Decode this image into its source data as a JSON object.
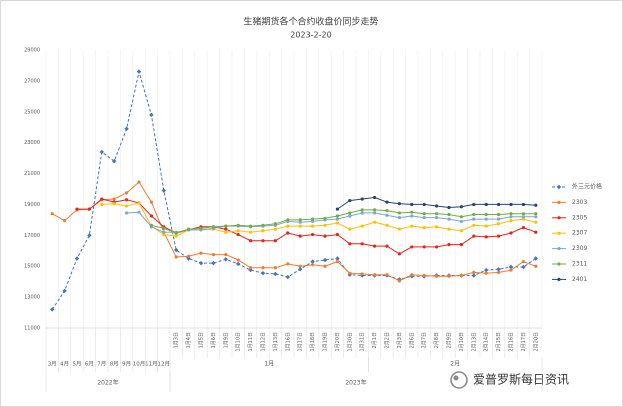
{
  "chart_data": {
    "type": "line",
    "title": "生猪期货各个合约收盘价同步走势",
    "subtitle": "2023-2-20",
    "categories": [
      "3月",
      "4月",
      "5月",
      "6月",
      "7月",
      "8月",
      "9月",
      "10月",
      "11月",
      "12月",
      "1月3日",
      "1月4日",
      "1月5日",
      "1月6日",
      "1月9日",
      "1月10日",
      "1月11日",
      "1月12日",
      "1月13日",
      "1月16日",
      "1月17日",
      "1月18日",
      "1月19日",
      "1月20日",
      "1月30日",
      "1月31日",
      "2月1日",
      "2月2日",
      "2月3日",
      "2月6日",
      "2月7日",
      "2月8日",
      "2月9日",
      "2月10日",
      "2月13日",
      "2月14日",
      "2月15日",
      "2月16日",
      "2月17日",
      "2月20日"
    ],
    "category_months": [
      null,
      null,
      null,
      null,
      null,
      null,
      null,
      null,
      null,
      null,
      "1月",
      "1月",
      "1月",
      "1月",
      "1月",
      "1月",
      "1月",
      "1月",
      "1月",
      "1月",
      "1月",
      "1月",
      "1月",
      "1月",
      "1月",
      "1月",
      "2月",
      "2月",
      "2月",
      "2月",
      "2月",
      "2月",
      "2月",
      "2月",
      "2月",
      "2月",
      "2月",
      "2月",
      "2月",
      "2月"
    ],
    "category_years": [
      "2022年",
      "2022年",
      "2022年",
      "2022年",
      "2022年",
      "2022年",
      "2022年",
      "2022年",
      "2022年",
      "2022年",
      "2023年",
      "2023年",
      "2023年",
      "2023年",
      "2023年",
      "2023年",
      "2023年",
      "2023年",
      "2023年",
      "2023年",
      "2023年",
      "2023年",
      "2023年",
      "2023年",
      "2023年",
      "2023年",
      "2023年",
      "2023年",
      "2023年",
      "2023年",
      "2023年",
      "2023年",
      "2023年",
      "2023年",
      "2023年",
      "2023年",
      "2023年",
      "2023年",
      "2023年",
      "2023年"
    ],
    "series": [
      {
        "name": "外三元价格",
        "color": "#4472c4",
        "dashed": true,
        "marker": "diamond",
        "values": [
          12200,
          13400,
          15500,
          17000,
          22400,
          21800,
          23900,
          27600,
          24800,
          19900,
          16050,
          15500,
          15200,
          15200,
          15450,
          15150,
          14750,
          14550,
          14500,
          14300,
          14800,
          15300,
          15400,
          15500,
          14450,
          14400,
          14400,
          14400,
          14150,
          14350,
          14350,
          14400,
          14400,
          14400,
          14400,
          14750,
          14800,
          14950,
          14950,
          15500
        ]
      },
      {
        "name": "2303",
        "color": "#ed7d31",
        "values": [
          18400,
          17950,
          18650,
          18700,
          19300,
          19350,
          19750,
          20450,
          19150,
          17200,
          15600,
          15650,
          15850,
          15750,
          15750,
          15400,
          14900,
          14900,
          14900,
          15150,
          15000,
          15100,
          15000,
          15300,
          14550,
          14500,
          14450,
          14450,
          14050,
          14450,
          14400,
          14350,
          14350,
          14400,
          14600,
          14550,
          14600,
          14750,
          15300,
          15000
        ]
      },
      {
        "name": "2305",
        "color": "#e8211b",
        "values": [
          null,
          null,
          18700,
          18700,
          19350,
          19150,
          19300,
          19100,
          18250,
          17550,
          17150,
          17350,
          17550,
          17550,
          17400,
          17050,
          16650,
          16650,
          16650,
          17150,
          16950,
          17050,
          16950,
          17050,
          16450,
          16450,
          16300,
          16300,
          15800,
          16250,
          16250,
          16250,
          16400,
          16400,
          16950,
          16900,
          16950,
          17150,
          17500,
          17200
        ]
      },
      {
        "name": "2307",
        "color": "#ffc000",
        "values": [
          null,
          null,
          null,
          null,
          19000,
          19050,
          18900,
          19100,
          17600,
          17050,
          16950,
          17350,
          17350,
          17400,
          17200,
          17300,
          17200,
          17300,
          17400,
          17600,
          17600,
          17600,
          17650,
          17800,
          17400,
          17600,
          17850,
          17650,
          17400,
          17600,
          17500,
          17550,
          17400,
          17300,
          17650,
          17600,
          17750,
          17950,
          18050,
          17850
        ]
      },
      {
        "name": "2309",
        "color": "#7ea6d8",
        "values": [
          null,
          null,
          null,
          null,
          null,
          null,
          18450,
          18500,
          17550,
          17200,
          17200,
          17350,
          17350,
          17450,
          17600,
          17600,
          17550,
          17600,
          17650,
          17900,
          17850,
          17900,
          18000,
          18050,
          18250,
          18450,
          18450,
          18300,
          18150,
          18250,
          18150,
          18150,
          18050,
          17900,
          18050,
          18050,
          18050,
          18200,
          18200,
          18200
        ]
      },
      {
        "name": "2311",
        "color": "#70ad47",
        "values": [
          null,
          null,
          null,
          null,
          null,
          null,
          null,
          null,
          17650,
          17450,
          17150,
          17400,
          17450,
          17550,
          17600,
          17650,
          17600,
          17650,
          17750,
          18000,
          18000,
          18050,
          18100,
          18250,
          18450,
          18650,
          18650,
          18600,
          18450,
          18500,
          18400,
          18400,
          18350,
          18200,
          18350,
          18350,
          18350,
          18400,
          18400,
          18400
        ]
      },
      {
        "name": "2401",
        "color": "#264478",
        "values": [
          null,
          null,
          null,
          null,
          null,
          null,
          null,
          null,
          null,
          null,
          null,
          null,
          null,
          null,
          null,
          null,
          null,
          null,
          null,
          null,
          null,
          null,
          null,
          18700,
          19250,
          19350,
          19450,
          19150,
          19050,
          19000,
          19000,
          18900,
          18800,
          18850,
          19000,
          19000,
          19000,
          19000,
          19000,
          18950
        ]
      }
    ],
    "ylim": [
      11000,
      29000
    ],
    "yticks": [
      11000,
      13000,
      15000,
      17000,
      19000,
      21000,
      23000,
      25000,
      27000,
      29000
    ],
    "grid": "x",
    "legend": "right"
  },
  "watermark": "爱普罗斯每日资讯"
}
